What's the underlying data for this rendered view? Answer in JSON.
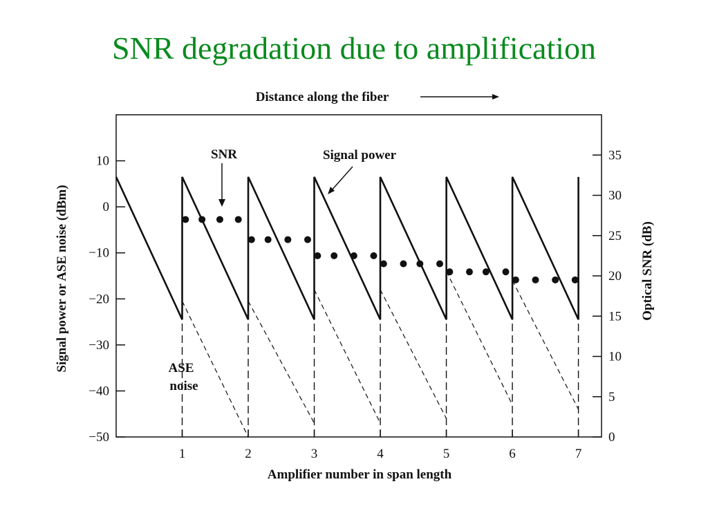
{
  "slide": {
    "title": "SNR degradation due to amplification"
  },
  "chart_data": {
    "type": "line",
    "title": "",
    "top_label": "Distance along the fiber",
    "xlabel": "Amplifier number in span length",
    "ylabel_left": "Signal power or ASE noise (dBm)",
    "ylabel_right": "Optical SNR (dB)",
    "x_ticks": [
      1,
      2,
      3,
      4,
      5,
      6,
      7
    ],
    "xlim": [
      0,
      7.35
    ],
    "ylim_left": [
      -50,
      20
    ],
    "ylim_right": [
      0,
      40
    ],
    "y_ticks_left": [
      10,
      0,
      -10,
      -20,
      -30,
      -40,
      -50
    ],
    "y_ticks_left_labels": [
      "10",
      "0",
      "−10",
      "−20",
      "−30",
      "−40",
      "−50"
    ],
    "y_ticks_right": [
      35,
      30,
      25,
      20,
      15,
      10,
      5,
      0
    ],
    "annotations": {
      "snr": "SNR",
      "signal_power": "Signal power",
      "ase_line1": "ASE",
      "ase_line2": "noise"
    },
    "series": [
      {
        "name": "Signal power",
        "axis": "left",
        "style": "solid",
        "points": [
          [
            0,
            6.5
          ],
          [
            1,
            -24.5
          ],
          [
            1,
            6.5
          ],
          [
            2,
            -24.5
          ],
          [
            2,
            6.5
          ],
          [
            3,
            -24.5
          ],
          [
            3,
            6.5
          ],
          [
            4,
            -24.5
          ],
          [
            4,
            6.5
          ],
          [
            5,
            -24.5
          ],
          [
            5,
            6.5
          ],
          [
            6,
            -24.5
          ],
          [
            6,
            6.5
          ],
          [
            7,
            -24.5
          ],
          [
            7,
            6.5
          ]
        ]
      },
      {
        "name": "ASE noise",
        "axis": "left",
        "style": "dashed",
        "segments": [
          [
            [
              1,
              -20.5
            ],
            [
              2,
              -50
            ]
          ],
          [
            [
              2,
              -20.5
            ],
            [
              3,
              -47
            ]
          ],
          [
            [
              3,
              -18
            ],
            [
              4,
              -47
            ]
          ],
          [
            [
              4,
              -18
            ],
            [
              5,
              -46
            ]
          ],
          [
            [
              5,
              -14
            ],
            [
              6,
              -43
            ]
          ],
          [
            [
              6,
              -16
            ],
            [
              7,
              -44
            ]
          ]
        ],
        "verticals": [
          [
            1,
            -50,
            -24.5
          ],
          [
            2,
            -50,
            -24.5
          ],
          [
            3,
            -50,
            -24.5
          ],
          [
            4,
            -50,
            -24.5
          ],
          [
            5,
            -50,
            -24.5
          ],
          [
            6,
            -50,
            -24.5
          ],
          [
            7,
            -50,
            -24.5
          ]
        ]
      },
      {
        "name": "SNR",
        "axis": "right",
        "style": "dots",
        "points": [
          [
            1.05,
            27
          ],
          [
            1.3,
            27
          ],
          [
            1.57,
            27
          ],
          [
            1.85,
            27
          ],
          [
            2.05,
            24.5
          ],
          [
            2.3,
            24.5
          ],
          [
            2.6,
            24.5
          ],
          [
            2.9,
            24.5
          ],
          [
            3.05,
            22.5
          ],
          [
            3.3,
            22.5
          ],
          [
            3.6,
            22.5
          ],
          [
            3.9,
            22.5
          ],
          [
            4.05,
            21.5
          ],
          [
            4.35,
            21.5
          ],
          [
            4.6,
            21.5
          ],
          [
            4.9,
            21.5
          ],
          [
            5.05,
            20.5
          ],
          [
            5.35,
            20.5
          ],
          [
            5.6,
            20.5
          ],
          [
            5.9,
            20.5
          ],
          [
            6.05,
            19.5
          ],
          [
            6.35,
            19.5
          ],
          [
            6.65,
            19.5
          ],
          [
            6.95,
            19.5
          ]
        ]
      }
    ],
    "colors": {
      "title": "#0a8a1e",
      "ink": "#111111"
    }
  }
}
